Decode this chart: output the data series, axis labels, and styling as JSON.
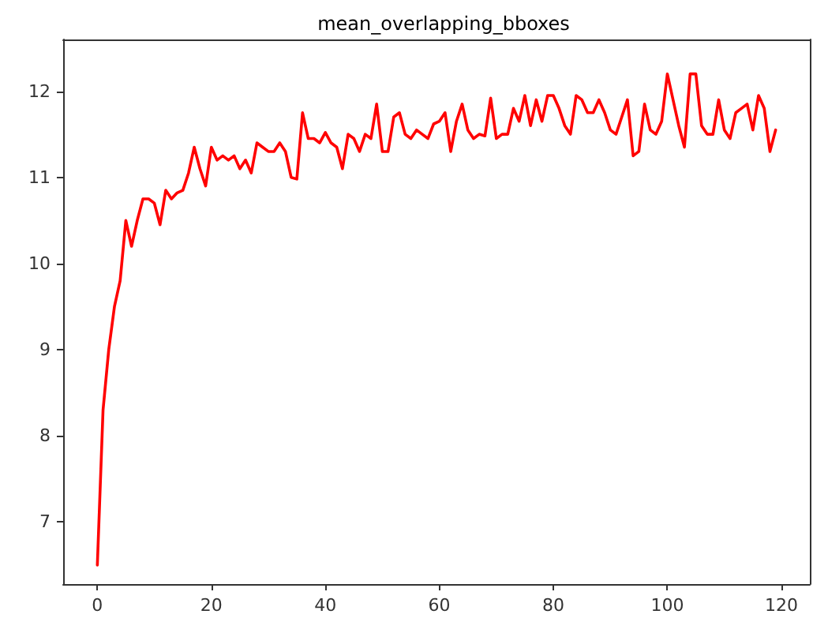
{
  "chart_data": {
    "type": "line",
    "title": "mean_overlapping_bboxes",
    "x": [
      0,
      1,
      2,
      3,
      4,
      5,
      6,
      7,
      8,
      9,
      10,
      11,
      12,
      13,
      14,
      15,
      16,
      17,
      18,
      19,
      20,
      21,
      22,
      23,
      24,
      25,
      26,
      27,
      28,
      29,
      30,
      31,
      32,
      33,
      34,
      35,
      36,
      37,
      38,
      39,
      40,
      41,
      42,
      43,
      44,
      45,
      46,
      47,
      48,
      49,
      50,
      51,
      52,
      53,
      54,
      55,
      56,
      57,
      58,
      59,
      60,
      61,
      62,
      63,
      64,
      65,
      66,
      67,
      68,
      69,
      70,
      71,
      72,
      73,
      74,
      75,
      76,
      77,
      78,
      79,
      80,
      81,
      82,
      83,
      84,
      85,
      86,
      87,
      88,
      89,
      90,
      91,
      92,
      93,
      94,
      95,
      96,
      97,
      98,
      99,
      100,
      101,
      102,
      103,
      104,
      105,
      106,
      107,
      108,
      109,
      110,
      111,
      112,
      113,
      114,
      115,
      116,
      117,
      118,
      119
    ],
    "series": [
      {
        "color": "#ff0000",
        "values": [
          6.5,
          8.3,
          9.0,
          9.5,
          9.8,
          10.5,
          10.2,
          10.5,
          10.75,
          10.75,
          10.7,
          10.45,
          10.85,
          10.75,
          10.82,
          10.85,
          11.05,
          11.35,
          11.1,
          10.9,
          11.35,
          11.2,
          11.25,
          11.2,
          11.25,
          11.1,
          11.2,
          11.05,
          11.4,
          11.35,
          11.3,
          11.3,
          11.4,
          11.3,
          11.0,
          10.98,
          11.75,
          11.45,
          11.45,
          11.4,
          11.52,
          11.4,
          11.35,
          11.1,
          11.5,
          11.45,
          11.3,
          11.5,
          11.45,
          11.85,
          11.3,
          11.3,
          11.7,
          11.75,
          11.5,
          11.45,
          11.55,
          11.5,
          11.45,
          11.62,
          11.65,
          11.75,
          11.3,
          11.65,
          11.85,
          11.55,
          11.45,
          11.5,
          11.48,
          11.92,
          11.45,
          11.5,
          11.5,
          11.8,
          11.65,
          11.95,
          11.6,
          11.9,
          11.65,
          11.95,
          11.95,
          11.8,
          11.6,
          11.5,
          11.95,
          11.9,
          11.75,
          11.75,
          11.9,
          11.75,
          11.55,
          11.5,
          11.7,
          11.9,
          11.25,
          11.3,
          11.85,
          11.55,
          11.5,
          11.65,
          12.2,
          11.9,
          11.6,
          11.35,
          12.2,
          12.2,
          11.6,
          11.5,
          11.5,
          11.9,
          11.55,
          11.45,
          11.75,
          11.8,
          11.85,
          11.55,
          11.95,
          11.8,
          11.3,
          11.55
        ]
      }
    ],
    "xlim": [
      -6,
      125
    ],
    "xticks": [
      0,
      20,
      40,
      60,
      80,
      100,
      120
    ],
    "ylim": [
      6.28,
      12.6
    ],
    "yticks": [
      7,
      8,
      9,
      10,
      11,
      12
    ],
    "grid": false,
    "marker": "none",
    "line_style": "solid"
  }
}
